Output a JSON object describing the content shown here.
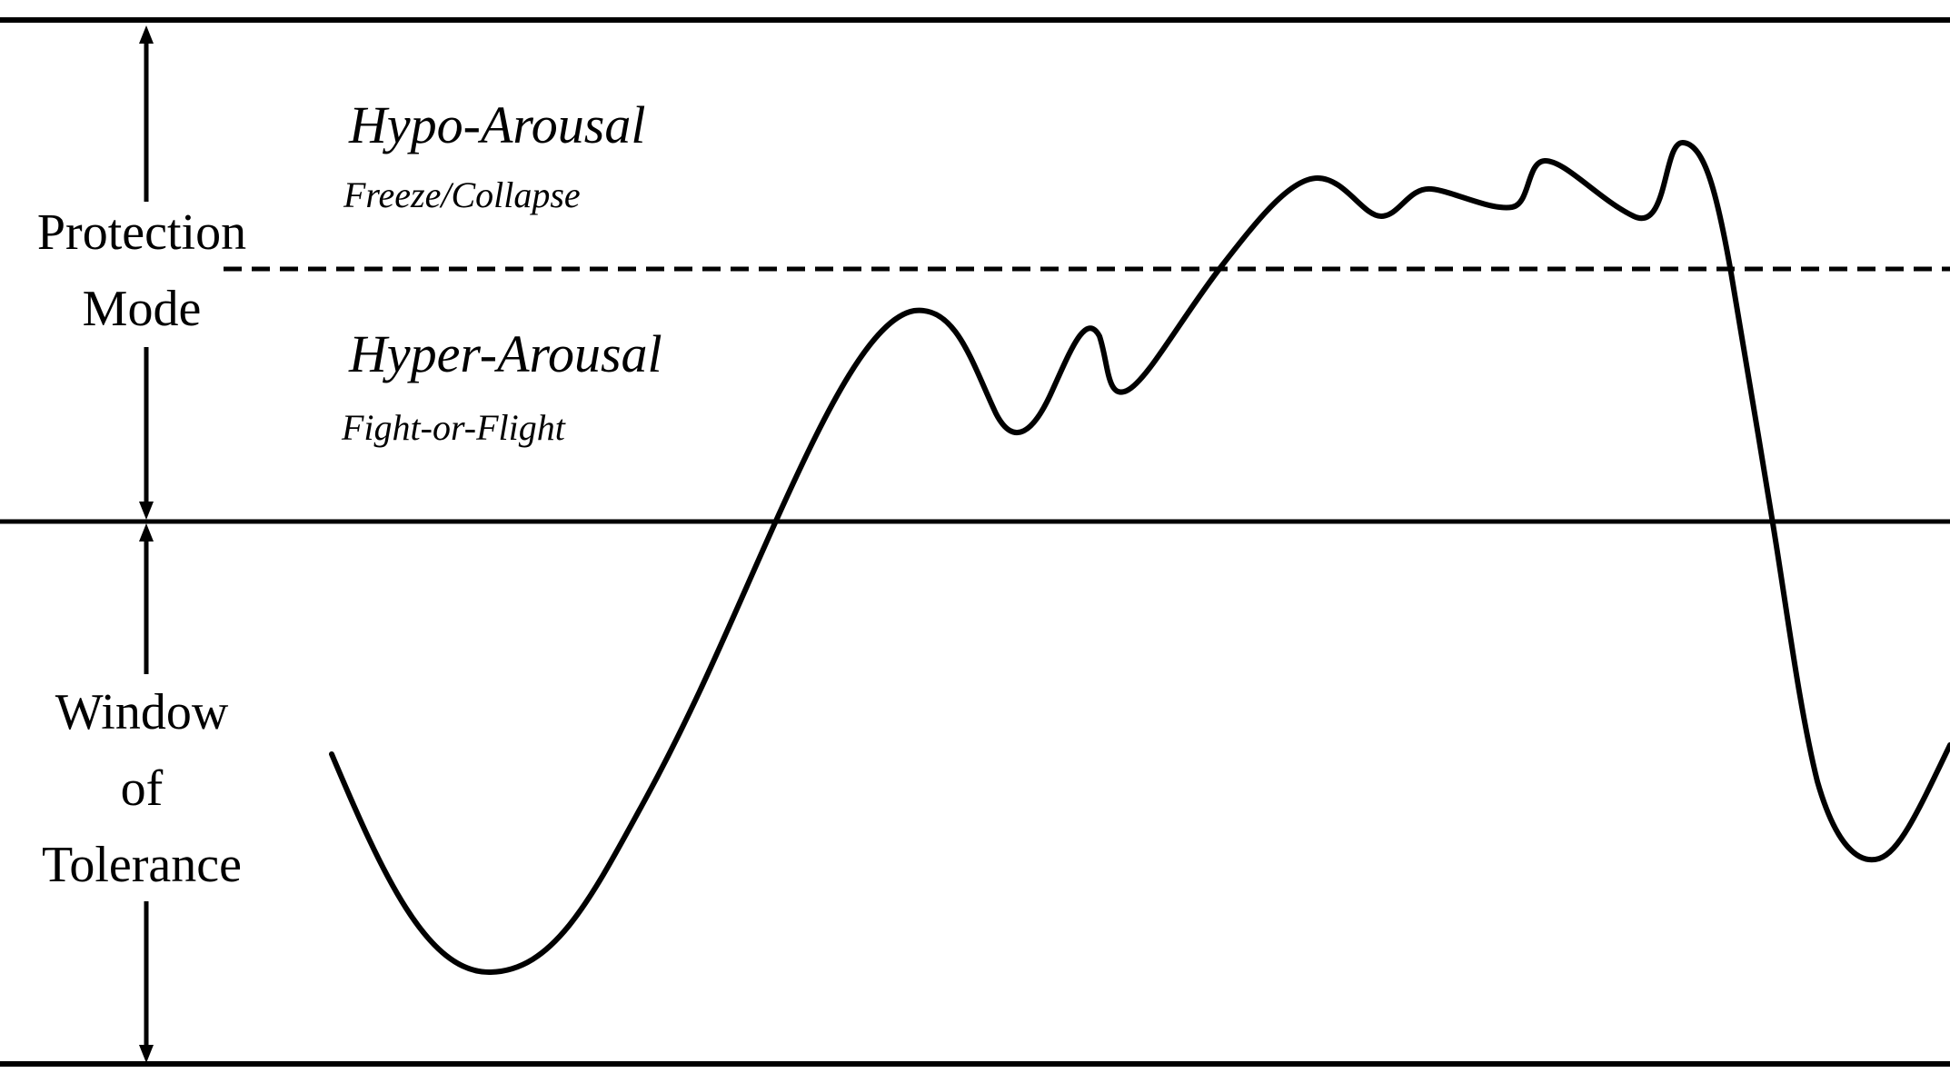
{
  "labels": {
    "protection_mode": {
      "line1": "Protection",
      "line2": "Mode"
    },
    "window_of_tolerance": {
      "line1": "Window",
      "line2": "of",
      "line3": "Tolerance"
    },
    "hypo_arousal": {
      "title": "Hypo-Arousal",
      "subtitle": "Freeze/Collapse"
    },
    "hyper_arousal": {
      "title": "Hyper-Arousal",
      "subtitle": "Fight-or-Flight"
    }
  },
  "colors": {
    "ink": "#000000",
    "background": "#ffffff"
  }
}
